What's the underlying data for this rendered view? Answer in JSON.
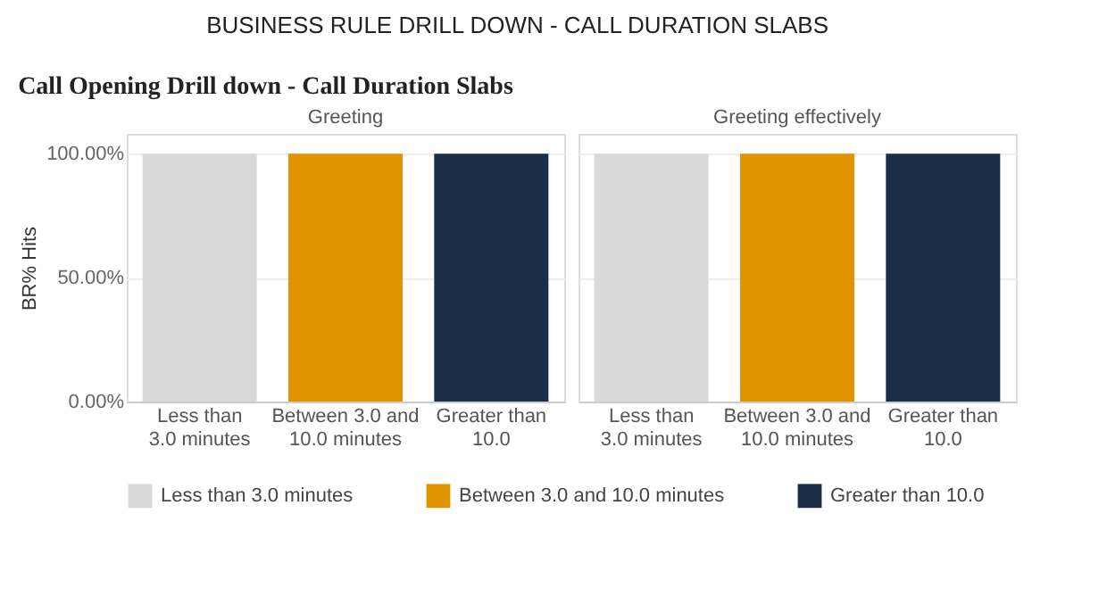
{
  "chart_data": [
    {
      "type": "bar",
      "title": "BUSINESS RULE DRILL DOWN - CALL DURATION SLABS",
      "subtitle": "Call Opening Drill down - Call Duration Slabs",
      "xlabel": "Greeting",
      "ylabel": "BR% Hits",
      "categories": [
        "Less than 3.0 minutes",
        "Between 3.0 and 10.0 minutes",
        "Greater than 10.0"
      ],
      "series": [
        {
          "name": "Less than 3.0 minutes",
          "color": "#d9d9d9",
          "values": [
            100,
            null,
            null
          ]
        },
        {
          "name": "Between 3.0 and 10.0 minutes",
          "color": "#e09400",
          "values": [
            null,
            100,
            null
          ]
        },
        {
          "name": "Greater than 10.0",
          "color": "#1b2e45",
          "values": [
            null,
            null,
            100
          ]
        }
      ],
      "ylim": [
        0,
        108
      ],
      "yticks": [
        {
          "value": 0,
          "label": "0.00%"
        },
        {
          "value": 50,
          "label": "50.00%"
        },
        {
          "value": 100,
          "label": "100.00%"
        }
      ],
      "grid": "y",
      "legend": "bottom"
    },
    {
      "type": "bar",
      "xlabel": "Greeting effectively",
      "categories": [
        "Less than 3.0 minutes",
        "Between 3.0 and 10.0 minutes",
        "Greater than 10.0"
      ],
      "series": [
        {
          "color": "#d9d9d9",
          "values": [
            100,
            null,
            null
          ]
        },
        {
          "color": "#e09400",
          "values": [
            null,
            100,
            null
          ]
        },
        {
          "color": "#1b2e45",
          "values": [
            null,
            null,
            100
          ]
        }
      ],
      "ylim": [
        0,
        108
      ],
      "yticks": [
        0,
        50,
        100
      ],
      "grid": "y",
      "tick_labels": "x"
    }
  ]
}
